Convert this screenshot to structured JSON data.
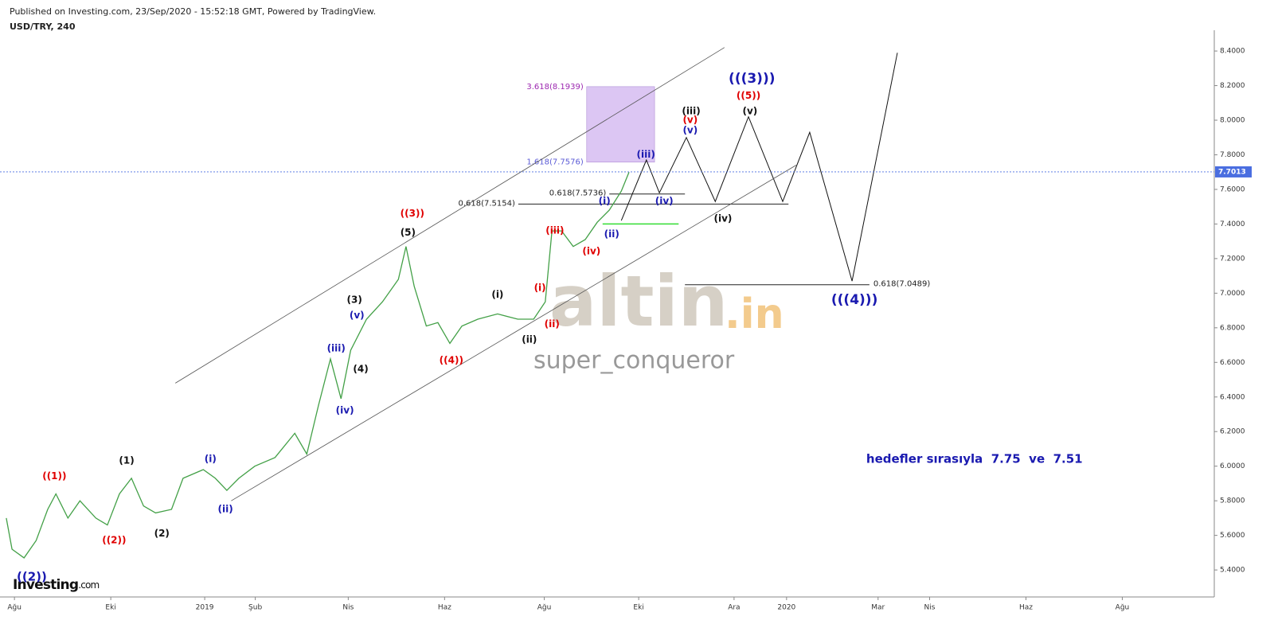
{
  "header": {
    "published": "Published on Investing.com, 23/Sep/2020 - 15:52:18 GMT, Powered by TradingView.",
    "symbol": "USD/TRY, 240"
  },
  "watermark": {
    "brand": "altin",
    "suffix": ".in",
    "user": "super_conqueror"
  },
  "logo": {
    "name": "Investing",
    "suffix": ".com"
  },
  "chart_data": {
    "type": "line",
    "xlim": [
      -0.3,
      24.91
    ],
    "ylim": [
      5.244,
      8.474
    ],
    "xticks": [
      {
        "value": 0,
        "label": "Ağu"
      },
      {
        "value": 2,
        "label": "Eki"
      },
      {
        "value": 3.95,
        "label": "2019"
      },
      {
        "value": 5,
        "label": "Şub"
      },
      {
        "value": 6.93,
        "label": "Nis"
      },
      {
        "value": 8.93,
        "label": "Haz"
      },
      {
        "value": 11,
        "label": "Ağu"
      },
      {
        "value": 12.96,
        "label": "Eki"
      },
      {
        "value": 14.94,
        "label": "Ara"
      },
      {
        "value": 16.03,
        "label": "2020"
      },
      {
        "value": 17.93,
        "label": "Mar"
      },
      {
        "value": 19,
        "label": "Nis"
      },
      {
        "value": 21,
        "label": "Haz"
      },
      {
        "value": 23,
        "label": "Ağu"
      }
    ],
    "yticks": [
      {
        "value": 5.4,
        "label": "5.4000"
      },
      {
        "value": 5.6,
        "label": "5.6000"
      },
      {
        "value": 5.8,
        "label": "5.8000"
      },
      {
        "value": 6.0,
        "label": "6.0000"
      },
      {
        "value": 6.2,
        "label": "6.2000"
      },
      {
        "value": 6.4,
        "label": "6.4000"
      },
      {
        "value": 6.6,
        "label": "6.6000"
      },
      {
        "value": 6.8,
        "label": "6.8000"
      },
      {
        "value": 7.0,
        "label": "7.0000"
      },
      {
        "value": 7.2,
        "label": "7.2000"
      },
      {
        "value": 7.4,
        "label": "7.4000"
      },
      {
        "value": 7.6,
        "label": "7.6000"
      },
      {
        "value": 7.8,
        "label": "7.8000"
      },
      {
        "value": 8.0,
        "label": "8.0000"
      },
      {
        "value": 8.2,
        "label": "8.2000"
      },
      {
        "value": 8.4,
        "label": "8.4000"
      }
    ],
    "last_price": 7.7013,
    "last_price_color": "#4a6ee0",
    "series": [
      {
        "color": "#43a047",
        "width": 1.3,
        "x": [
          -0.17,
          -0.05,
          0.2,
          0.45,
          0.69,
          0.86,
          1.11,
          1.36,
          1.69,
          1.93,
          2.18,
          2.43,
          2.68,
          2.93,
          3.26,
          3.5,
          3.92,
          4.17,
          4.41,
          4.66,
          4.99,
          5.41,
          5.82,
          6.07,
          6.31,
          6.56,
          6.78,
          6.98,
          7.31,
          7.64,
          7.97,
          8.13,
          8.3,
          8.55,
          8.79,
          9.04,
          9.29,
          9.62,
          10.03,
          10.45,
          10.78,
          11.02,
          11.16,
          11.36,
          11.6,
          11.85,
          12.1,
          12.35,
          12.6,
          12.76
        ],
        "values": [
          5.7,
          5.52,
          5.47,
          5.57,
          5.75,
          5.84,
          5.7,
          5.8,
          5.7,
          5.66,
          5.84,
          5.93,
          5.77,
          5.73,
          5.75,
          5.93,
          5.98,
          5.93,
          5.86,
          5.93,
          6.0,
          6.05,
          6.19,
          6.07,
          6.35,
          6.62,
          6.39,
          6.67,
          6.85,
          6.95,
          7.08,
          7.27,
          7.04,
          6.81,
          6.83,
          6.71,
          6.81,
          6.85,
          6.88,
          6.85,
          6.85,
          6.95,
          7.36,
          7.36,
          7.27,
          7.31,
          7.41,
          7.48,
          7.59,
          7.7
        ]
      },
      {
        "color": "#111111",
        "width": 1,
        "x": [
          12.6,
          13.12,
          13.39,
          13.95,
          14.55,
          15.24,
          15.95,
          16.51,
          17.39,
          18.33
        ],
        "values": [
          7.42,
          7.77,
          7.58,
          7.9,
          7.53,
          8.02,
          7.53,
          7.93,
          7.07,
          8.39
        ]
      },
      {
        "color": "#555555",
        "width": 0.8,
        "x": [
          3.34,
          14.74
        ],
        "values": [
          6.48,
          8.42
        ]
      },
      {
        "color": "#555555",
        "width": 0.8,
        "x": [
          4.5,
          16.23
        ],
        "values": [
          5.8,
          7.74
        ]
      },
      {
        "color": "#33dd33",
        "width": 1.5,
        "x": [
          12.21,
          13.79
        ],
        "values": [
          7.4,
          7.4
        ]
      }
    ],
    "zone_color": "#dcc6f3",
    "levels": [
      {
        "value": 8.1939,
        "label": "3.618(8.1939)",
        "x0": 11.88,
        "x1": 13.29,
        "color": "#9c27b0",
        "side": "left",
        "zone": true
      },
      {
        "value": 7.7576,
        "label": "1.618(7.7576)",
        "x0": 11.88,
        "x1": 13.29,
        "color": "#5b5bd6",
        "side": "left",
        "zone": true
      },
      {
        "value": 7.5736,
        "label": "0.618(7.5736)",
        "x0": 12.35,
        "x1": 13.92,
        "color": "#222222",
        "side": "left"
      },
      {
        "value": 7.5154,
        "label": "0.618(7.5154)",
        "x0": 10.46,
        "x1": 16.07,
        "color": "#222222",
        "side": "left"
      },
      {
        "value": 7.0489,
        "label": "0.618(7.0489)",
        "x0": 13.92,
        "x1": 17.75,
        "color": "#222222",
        "side": "right"
      }
    ],
    "annotations": [
      {
        "text": "((1))",
        "x": 0.83,
        "y": 5.94,
        "color": "#e00000"
      },
      {
        "text": "((2))",
        "x": 2.07,
        "y": 5.57,
        "color": "#e00000"
      },
      {
        "text": "((2))",
        "x": 0.36,
        "y": 5.36,
        "color": "#1a1ab0",
        "size": 15
      },
      {
        "text": "(1)",
        "x": 2.33,
        "y": 6.03,
        "color": "#111111"
      },
      {
        "text": "(2)",
        "x": 3.06,
        "y": 5.61,
        "color": "#111111"
      },
      {
        "text": "(i)",
        "x": 4.07,
        "y": 6.04,
        "color": "#1a1ab0"
      },
      {
        "text": "(ii)",
        "x": 4.38,
        "y": 5.75,
        "color": "#1a1ab0"
      },
      {
        "text": "(iii)",
        "x": 6.68,
        "y": 6.68,
        "color": "#1a1ab0"
      },
      {
        "text": "(iv)",
        "x": 6.86,
        "y": 6.32,
        "color": "#1a1ab0"
      },
      {
        "text": "(v)",
        "x": 7.11,
        "y": 6.87,
        "color": "#1a1ab0"
      },
      {
        "text": "(3)",
        "x": 7.06,
        "y": 6.96,
        "color": "#111111"
      },
      {
        "text": "(4)",
        "x": 7.19,
        "y": 6.56,
        "color": "#111111"
      },
      {
        "text": "(5)",
        "x": 8.17,
        "y": 7.35,
        "color": "#111111"
      },
      {
        "text": "((3))",
        "x": 8.26,
        "y": 7.46,
        "color": "#e00000"
      },
      {
        "text": "((4))",
        "x": 9.07,
        "y": 6.61,
        "color": "#e00000"
      },
      {
        "text": "(i)",
        "x": 10.03,
        "y": 6.99,
        "color": "#111111"
      },
      {
        "text": "(ii)",
        "x": 10.69,
        "y": 6.73,
        "color": "#111111"
      },
      {
        "text": "(i)",
        "x": 10.91,
        "y": 7.03,
        "color": "#e00000"
      },
      {
        "text": "(ii)",
        "x": 11.16,
        "y": 6.82,
        "color": "#e00000"
      },
      {
        "text": "(iii)",
        "x": 11.22,
        "y": 7.36,
        "color": "#e00000"
      },
      {
        "text": "(iv)",
        "x": 11.98,
        "y": 7.24,
        "color": "#e00000"
      },
      {
        "text": "(i)",
        "x": 12.25,
        "y": 7.53,
        "color": "#1a1ab0"
      },
      {
        "text": "(ii)",
        "x": 12.4,
        "y": 7.34,
        "color": "#1a1ab0"
      },
      {
        "text": "(iii)",
        "x": 13.11,
        "y": 7.8,
        "color": "#1a1ab0"
      },
      {
        "text": "(iv)",
        "x": 13.49,
        "y": 7.53,
        "color": "#1a1ab0"
      },
      {
        "text": "(v)",
        "x": 14.03,
        "y": 7.94,
        "color": "#1a1ab0"
      },
      {
        "text": "(v)",
        "x": 14.03,
        "y": 8.0,
        "color": "#e00000"
      },
      {
        "text": "(iii)",
        "x": 14.05,
        "y": 8.05,
        "color": "#111111"
      },
      {
        "text": "(iv)",
        "x": 14.71,
        "y": 7.43,
        "color": "#111111"
      },
      {
        "text": "(v)",
        "x": 15.27,
        "y": 8.05,
        "color": "#111111"
      },
      {
        "text": "((5))",
        "x": 15.24,
        "y": 8.14,
        "color": "#e00000"
      },
      {
        "text": "(((3)))",
        "x": 15.31,
        "y": 8.24,
        "color": "#1a1ab0",
        "size": 17
      },
      {
        "text": "(((4)))",
        "x": 17.44,
        "y": 6.96,
        "color": "#1a1ab0",
        "size": 17
      },
      {
        "text": "hedefler sırasıyla  7.75  ve  7.51",
        "x": 19.93,
        "y": 6.04,
        "color": "#1a1ab0",
        "size": 15
      }
    ]
  }
}
